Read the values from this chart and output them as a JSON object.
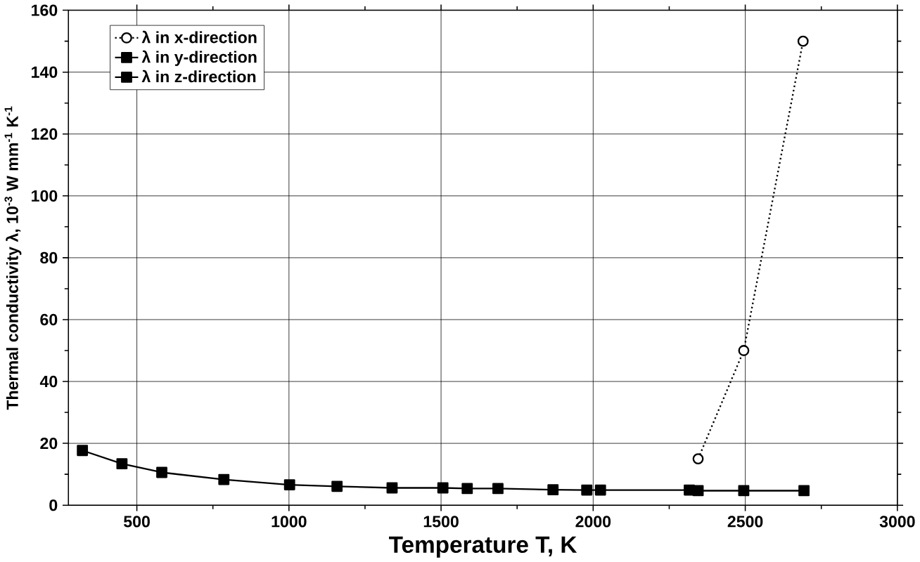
{
  "chart_data": {
    "type": "line",
    "xlabel": "Temperature T, K",
    "ylabel": "Thermal conductivity λ, 10$^{-3}$ W mm$^{-1}$ K$^{-1}$",
    "xlim": [
      275,
      3000
    ],
    "ylim": [
      0,
      160
    ],
    "xticks": [
      500,
      1000,
      1500,
      2000,
      2500,
      3000
    ],
    "yticks": [
      0,
      20,
      40,
      60,
      80,
      100,
      120,
      140,
      160
    ],
    "grid": true,
    "legend": "top left",
    "series": [
      {
        "name": "λ in x-direction",
        "color": "#000000",
        "marker": "circle",
        "line_style": "dotted",
        "x": [
          2345,
          2495,
          2690
        ],
        "values": [
          15,
          50,
          150
        ]
      },
      {
        "name": "λ in y-direction",
        "color": "#000000",
        "marker": "square",
        "line_style": "solid",
        "x": [
          321,
          451,
          582,
          786,
          1002,
          1158,
          1339,
          1506,
          1586,
          1687,
          1868,
          1979,
          2024,
          2316
        ],
        "values": [
          17.7,
          13.4,
          10.6,
          8.3,
          6.6,
          6.1,
          5.6,
          5.6,
          5.4,
          5.4,
          5.0,
          4.9,
          4.9,
          4.9
        ]
      },
      {
        "name": "λ in z-direction",
        "color": "#000000",
        "marker": "square",
        "line_style": "solid",
        "x": [
          2345,
          2495,
          2693
        ],
        "values": [
          4.7,
          4.7,
          4.7
        ]
      }
    ]
  }
}
